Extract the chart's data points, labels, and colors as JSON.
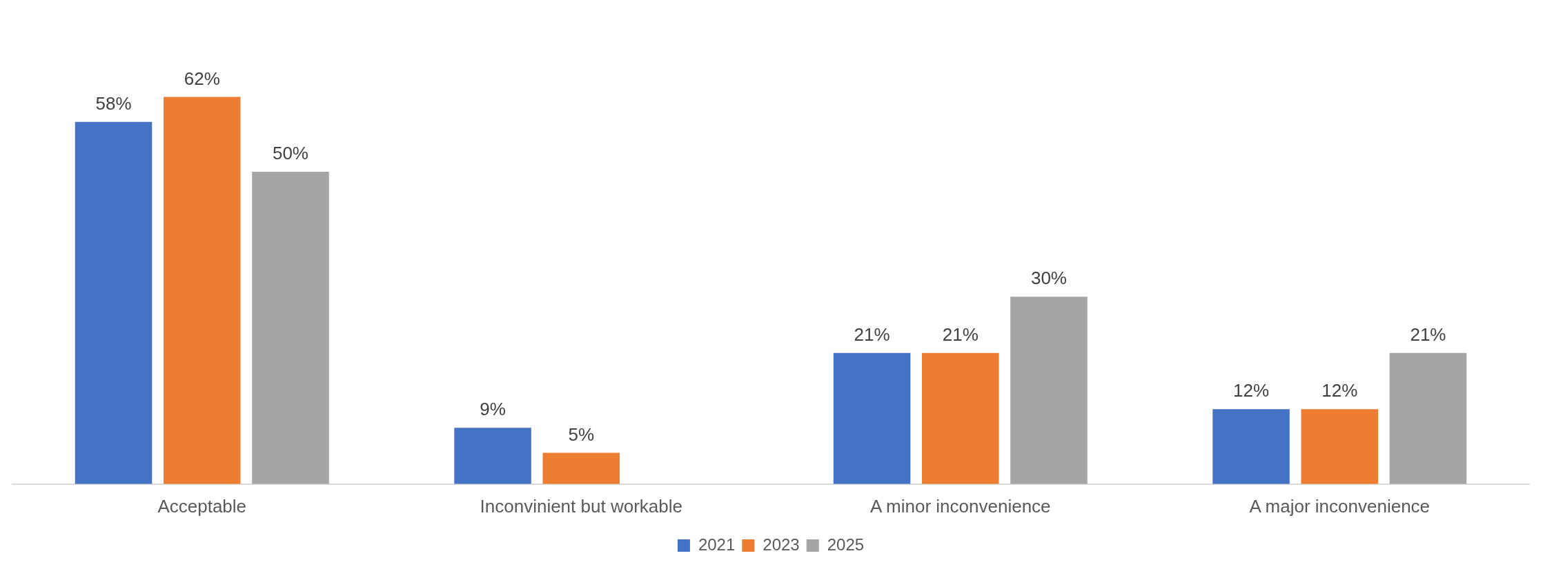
{
  "chart_data": {
    "type": "bar",
    "categories": [
      "Acceptable",
      "Inconvinient but workable",
      "A minor inconvenience",
      "A major inconvenience"
    ],
    "series": [
      {
        "name": "2021",
        "color": "#4472c4",
        "values": [
          58,
          9,
          21,
          12
        ],
        "value_labels": [
          "58%",
          "9%",
          "21%",
          "12%"
        ]
      },
      {
        "name": "2023",
        "color": "#ed7d31",
        "values": [
          62,
          5,
          21,
          12
        ],
        "value_labels": [
          "62%",
          "5%",
          "21%",
          "12%"
        ]
      },
      {
        "name": "2025",
        "color": "#a5a5a5",
        "values": [
          50,
          null,
          30,
          21
        ],
        "value_labels": [
          "50%",
          null,
          "30%",
          "21%"
        ]
      }
    ],
    "legend": "bottom",
    "grid": false
  }
}
